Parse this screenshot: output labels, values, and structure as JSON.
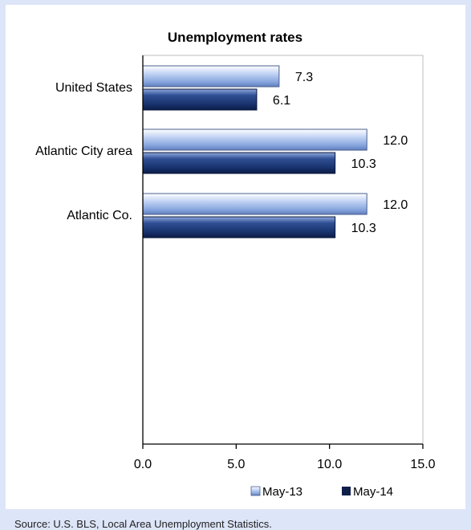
{
  "chart_data": {
    "type": "bar",
    "orientation": "horizontal",
    "title": "Unemployment rates",
    "categories": [
      "United States",
      "Atlantic City area",
      "Atlantic Co."
    ],
    "series": [
      {
        "name": "May-13",
        "values": [
          7.3,
          12.0,
          12.0
        ],
        "color": "#9db7e8"
      },
      {
        "name": "May-14",
        "values": [
          6.1,
          10.3,
          10.3
        ],
        "color": "#1d3a78"
      }
    ],
    "xlim": [
      0,
      15
    ],
    "x_ticks": [
      "0.0",
      "5.0",
      "10.0",
      "15.0"
    ],
    "xlabel": "",
    "ylabel": "",
    "grid": false,
    "legend": "bottom-right"
  },
  "footer": {
    "source": "Source: U.S. BLS, Local Area Unemployment Statistics."
  }
}
